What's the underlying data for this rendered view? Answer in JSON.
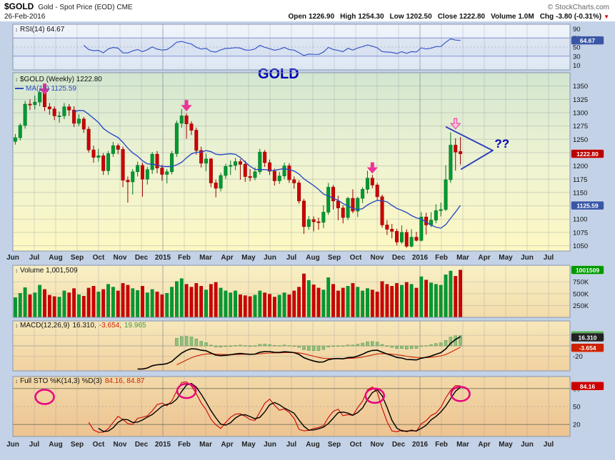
{
  "header": {
    "symbol": "$GOLD",
    "description": "Gold - Spot Price (EOD) CME",
    "date": "26-Feb-2016",
    "copyright": "© StockCharts.com",
    "chg_icon": "▼",
    "quote": {
      "items": [
        {
          "label": "Open",
          "value": "1226.90"
        },
        {
          "label": "High",
          "value": "1254.30"
        },
        {
          "label": "Low",
          "value": "1202.50"
        },
        {
          "label": "Close",
          "value": "1222.80"
        },
        {
          "label": "Volume",
          "value": "1.0M"
        },
        {
          "label": "Chg",
          "value": "-3.80 (-0.31%)"
        }
      ]
    }
  },
  "panels": {
    "rsi": {
      "label": "RSI(14) 64.67",
      "ticks": [
        90,
        70,
        50,
        30,
        10
      ],
      "overbought": 70,
      "oversold": 30,
      "flag": {
        "text": "64.67",
        "value": 64.67,
        "color": "#3a57a7"
      }
    },
    "price": {
      "label": "$GOLD (Weekly) 1222.80",
      "ma_label": "MA(13) 1125.59",
      "ticks": [
        1350,
        1325,
        1300,
        1275,
        1250,
        1225,
        1200,
        1175,
        1150,
        1125,
        1100,
        1075,
        1050
      ],
      "flags": [
        {
          "text": "1222.80",
          "value": 1222.8,
          "color": "#bb0000"
        },
        {
          "text": "1125.59",
          "value": 1125.59,
          "color": "#3a57a7"
        }
      ]
    },
    "volume": {
      "label": "Volume 1,001,509",
      "ticks": [
        {
          "text": "750K",
          "value": 750
        },
        {
          "text": "500K",
          "value": 500
        },
        {
          "text": "250K",
          "value": 250
        }
      ],
      "flag": {
        "text": "1001509",
        "value": 1001.5,
        "color": "#009900"
      }
    },
    "macd": {
      "name": "MACD(12,26,9)",
      "macd_value": "16.310,",
      "signal_value": "-3.654,",
      "hist_value": "19.965",
      "ticks": [
        20,
        -20
      ],
      "flags": [
        {
          "text": "19.965",
          "value": 19.965,
          "color": "#44aa44"
        },
        {
          "text": "16.310",
          "value": 16.31,
          "color": "#222222"
        },
        {
          "text": "-3.654",
          "value": -3.654,
          "color": "#cc2200"
        }
      ]
    },
    "sto": {
      "name": "Full STO %K(14,3) %D(3)",
      "values": "84.16, 84.87",
      "ticks": [
        80,
        50,
        20
      ],
      "upper": 80,
      "lower": 20,
      "flag": {
        "text": "84.16",
        "value": 84.16,
        "color": "#cc0000"
      }
    }
  },
  "colors": {
    "up": "#009933",
    "down": "#cc0000",
    "up_border": "#007722",
    "down_border": "#990000",
    "ma": "#2b4bc4",
    "rsi": "#3a57c7",
    "macd": "#000000",
    "signal": "#cc2200",
    "hist_fill": "#8fbf7f",
    "hist_border": "#5a9950",
    "stoch_k": "#cc0000",
    "stoch_d": "#000000",
    "annotation": "#0000bb",
    "arrow": "#ee3399",
    "arrow_light": "#f7c0dd",
    "circle": "#e8007f",
    "margin_bg": "#c3d2e7",
    "panel_border": "#8a97ad"
  },
  "chart_data": {
    "type": "candlestick",
    "symbol": "$GOLD",
    "timeframe": "weekly",
    "title": "$GOLD (Weekly) 1222.80",
    "x_months": [
      "Jun",
      "Jul",
      "Aug",
      "Sep",
      "Oct",
      "Nov",
      "Dec",
      "2015",
      "Feb",
      "Mar",
      "Apr",
      "May",
      "Jun",
      "Jul",
      "Aug",
      "Sep",
      "Oct",
      "Nov",
      "Dec",
      "2016",
      "Feb",
      "Mar",
      "Apr",
      "May",
      "Jun",
      "Jul"
    ],
    "data_month_span": 21,
    "ylim_price": [
      1040,
      1375
    ],
    "ylim_rsi": [
      0,
      100
    ],
    "ylim_sto": [
      0,
      100
    ],
    "volume_max_k": 1100,
    "indicators": {
      "ma_period": 13,
      "rsi_period": 14,
      "macd": [
        12,
        26,
        9
      ],
      "stochastic": [
        14,
        3,
        3
      ]
    },
    "candles": [
      [
        1246,
        1260,
        1240,
        1253
      ],
      [
        1253,
        1280,
        1248,
        1276
      ],
      [
        1276,
        1322,
        1270,
        1316
      ],
      [
        1316,
        1325,
        1305,
        1315
      ],
      [
        1315,
        1332,
        1306,
        1320
      ],
      [
        1320,
        1346,
        1312,
        1338
      ],
      [
        1338,
        1344,
        1303,
        1311
      ],
      [
        1311,
        1318,
        1296,
        1307
      ],
      [
        1307,
        1312,
        1286,
        1294
      ],
      [
        1294,
        1302,
        1281,
        1294
      ],
      [
        1294,
        1318,
        1288,
        1311
      ],
      [
        1311,
        1316,
        1294,
        1305
      ],
      [
        1305,
        1312,
        1273,
        1280
      ],
      [
        1280,
        1297,
        1275,
        1288
      ],
      [
        1288,
        1292,
        1262,
        1269
      ],
      [
        1269,
        1274,
        1225,
        1230
      ],
      [
        1230,
        1238,
        1206,
        1216
      ],
      [
        1216,
        1232,
        1208,
        1219
      ],
      [
        1219,
        1224,
        1183,
        1191
      ],
      [
        1191,
        1228,
        1183,
        1223
      ],
      [
        1223,
        1245,
        1217,
        1238
      ],
      [
        1238,
        1242,
        1222,
        1231
      ],
      [
        1231,
        1236,
        1160,
        1173
      ],
      [
        1173,
        1180,
        1131,
        1170
      ],
      [
        1170,
        1194,
        1146,
        1189
      ],
      [
        1189,
        1208,
        1180,
        1201
      ],
      [
        1201,
        1206,
        1142,
        1175
      ],
      [
        1175,
        1198,
        1165,
        1193
      ],
      [
        1193,
        1226,
        1185,
        1222
      ],
      [
        1222,
        1228,
        1186,
        1196
      ],
      [
        1196,
        1202,
        1172,
        1184
      ],
      [
        1184,
        1194,
        1167,
        1189
      ],
      [
        1189,
        1228,
        1184,
        1223
      ],
      [
        1223,
        1285,
        1217,
        1280
      ],
      [
        1280,
        1307,
        1272,
        1294
      ],
      [
        1294,
        1299,
        1251,
        1279
      ],
      [
        1279,
        1284,
        1258,
        1267
      ],
      [
        1267,
        1272,
        1221,
        1229
      ],
      [
        1229,
        1236,
        1197,
        1205
      ],
      [
        1205,
        1223,
        1190,
        1213
      ],
      [
        1213,
        1215,
        1160,
        1168
      ],
      [
        1168,
        1174,
        1141,
        1158
      ],
      [
        1158,
        1187,
        1152,
        1182
      ],
      [
        1182,
        1204,
        1176,
        1199
      ],
      [
        1199,
        1210,
        1183,
        1201
      ],
      [
        1201,
        1215,
        1192,
        1208
      ],
      [
        1208,
        1213,
        1174,
        1203
      ],
      [
        1203,
        1210,
        1170,
        1180
      ],
      [
        1180,
        1194,
        1171,
        1178
      ],
      [
        1178,
        1197,
        1173,
        1189
      ],
      [
        1189,
        1232,
        1184,
        1226
      ],
      [
        1226,
        1230,
        1198,
        1206
      ],
      [
        1206,
        1212,
        1183,
        1190
      ],
      [
        1190,
        1195,
        1163,
        1172
      ],
      [
        1172,
        1189,
        1166,
        1181
      ],
      [
        1181,
        1206,
        1175,
        1200
      ],
      [
        1200,
        1205,
        1168,
        1174
      ],
      [
        1174,
        1180,
        1157,
        1168
      ],
      [
        1168,
        1173,
        1129,
        1134
      ],
      [
        1134,
        1138,
        1072,
        1086
      ],
      [
        1086,
        1106,
        1080,
        1099
      ],
      [
        1099,
        1105,
        1077,
        1095
      ],
      [
        1095,
        1103,
        1080,
        1094
      ],
      [
        1094,
        1126,
        1083,
        1113
      ],
      [
        1113,
        1168,
        1108,
        1160
      ],
      [
        1160,
        1164,
        1118,
        1134
      ],
      [
        1134,
        1144,
        1098,
        1121
      ],
      [
        1121,
        1126,
        1092,
        1103
      ],
      [
        1103,
        1142,
        1098,
        1139
      ],
      [
        1139,
        1156,
        1111,
        1115
      ],
      [
        1115,
        1142,
        1104,
        1139
      ],
      [
        1139,
        1160,
        1130,
        1156
      ],
      [
        1156,
        1191,
        1148,
        1177
      ],
      [
        1177,
        1183,
        1158,
        1164
      ],
      [
        1164,
        1168,
        1136,
        1142
      ],
      [
        1142,
        1146,
        1084,
        1089
      ],
      [
        1089,
        1098,
        1070,
        1081
      ],
      [
        1081,
        1091,
        1064,
        1077
      ],
      [
        1077,
        1082,
        1051,
        1057
      ],
      [
        1057,
        1088,
        1053,
        1075
      ],
      [
        1075,
        1081,
        1046,
        1049
      ],
      [
        1049,
        1081,
        1047,
        1066
      ],
      [
        1066,
        1076,
        1058,
        1060
      ],
      [
        1060,
        1113,
        1058,
        1104
      ],
      [
        1104,
        1112,
        1071,
        1089
      ],
      [
        1089,
        1113,
        1085,
        1098
      ],
      [
        1098,
        1128,
        1092,
        1116
      ],
      [
        1116,
        1131,
        1105,
        1118
      ],
      [
        1118,
        1201,
        1115,
        1174
      ],
      [
        1174,
        1263,
        1168,
        1239
      ],
      [
        1239,
        1252,
        1191,
        1226
      ],
      [
        1226.9,
        1254.3,
        1202.5,
        1222.8
      ]
    ],
    "volume_k": [
      420,
      510,
      630,
      480,
      520,
      680,
      590,
      470,
      440,
      430,
      560,
      520,
      610,
      480,
      450,
      620,
      660,
      540,
      590,
      700,
      640,
      560,
      720,
      680,
      610,
      570,
      660,
      520,
      590,
      540,
      480,
      510,
      640,
      760,
      820,
      700,
      640,
      720,
      660,
      580,
      700,
      740,
      620,
      560,
      520,
      560,
      480,
      460,
      440,
      470,
      560,
      520,
      490,
      430,
      470,
      520,
      480,
      560,
      640,
      920,
      780,
      690,
      620,
      580,
      840,
      700,
      560,
      620,
      660,
      720,
      640,
      560,
      610,
      580,
      540,
      760,
      700,
      660,
      720,
      680,
      740,
      700,
      620,
      860,
      790,
      730,
      700,
      680,
      900,
      980,
      870,
      1001.5
    ],
    "annotations": {
      "texts": [
        {
          "text": "GOLD",
          "week": 53.8,
          "price": 1364,
          "size": 20
        },
        {
          "text": "??",
          "week": 99.5,
          "price": 1234,
          "size": 17
        }
      ],
      "arrows": [
        {
          "week": 6,
          "price": 1354,
          "style": "solid"
        },
        {
          "week": 35,
          "price": 1323,
          "style": "solid"
        },
        {
          "week": 73,
          "price": 1206,
          "style": "solid"
        },
        {
          "week": 90,
          "price": 1289,
          "style": "outline"
        }
      ],
      "triangle_lines": [
        [
          [
            88.1,
            1273
          ],
          [
            97.6,
            1229
          ]
        ],
        [
          [
            91.2,
            1194
          ],
          [
            97.6,
            1229
          ]
        ]
      ],
      "sto_circles": [
        {
          "week": 6,
          "value": 66
        },
        {
          "week": 35,
          "value": 76
        },
        {
          "week": 73.5,
          "value": 68
        },
        {
          "week": 91,
          "value": 71
        }
      ]
    }
  }
}
